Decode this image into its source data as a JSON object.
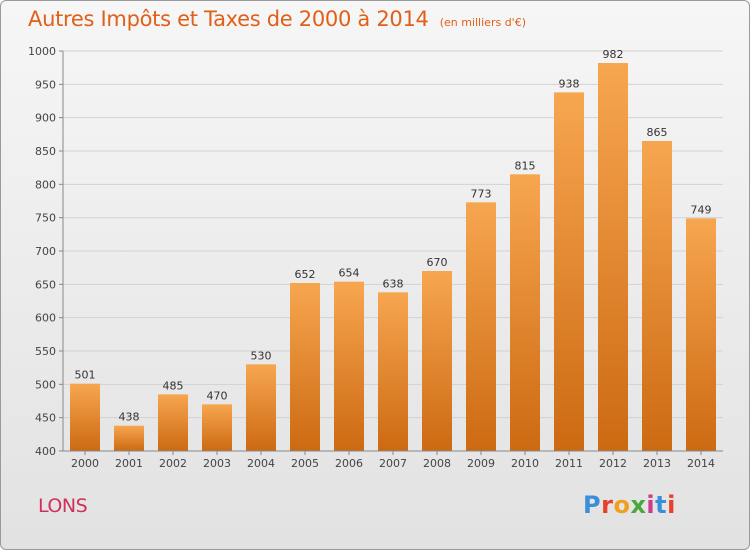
{
  "header": {
    "title": "Autres Impôts et Taxes de 2000 à 2014",
    "unit": "(en milliers d'€)"
  },
  "place": "LONS",
  "logo": {
    "text": "Proxiti",
    "colors": [
      "#3a8fd8",
      "#e8402a",
      "#f0a020",
      "#4aa83a",
      "#d03a8a",
      "#3a8fd8",
      "#e8402a"
    ]
  },
  "chart_data": {
    "type": "bar",
    "title": "Autres Impôts et Taxes de 2000 à 2014",
    "categories": [
      "2000",
      "2001",
      "2002",
      "2003",
      "2004",
      "2005",
      "2006",
      "2007",
      "2008",
      "2009",
      "2010",
      "2011",
      "2012",
      "2013",
      "2014"
    ],
    "values": [
      501,
      438,
      485,
      470,
      530,
      652,
      654,
      638,
      670,
      773,
      815,
      938,
      982,
      865,
      749
    ],
    "ylim": [
      400,
      1000
    ],
    "yticks": [
      400,
      450,
      500,
      550,
      600,
      650,
      700,
      750,
      800,
      850,
      900,
      950,
      1000
    ],
    "grid": true,
    "bar_color_top": "#f7a650",
    "bar_color_bottom": "#cc6a12",
    "axis_color": "#888888"
  }
}
